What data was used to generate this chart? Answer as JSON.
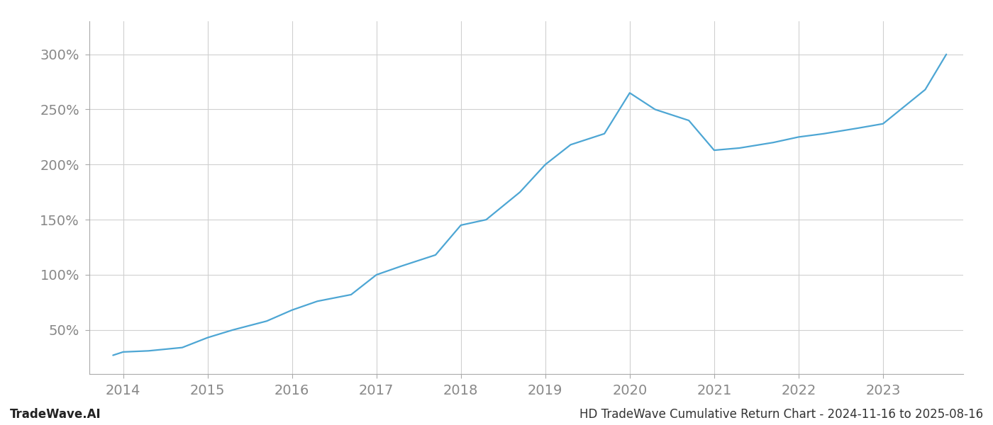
{
  "x_years": [
    2013.88,
    2014.0,
    2014.3,
    2014.7,
    2015.0,
    2015.3,
    2015.7,
    2016.0,
    2016.3,
    2016.7,
    2017.0,
    2017.3,
    2017.7,
    2018.0,
    2018.3,
    2018.7,
    2019.0,
    2019.3,
    2019.7,
    2020.0,
    2020.3,
    2020.7,
    2021.0,
    2021.3,
    2021.7,
    2022.0,
    2022.3,
    2022.7,
    2023.0,
    2023.5,
    2023.75
  ],
  "y_values": [
    27,
    30,
    31,
    34,
    43,
    50,
    58,
    68,
    76,
    82,
    100,
    108,
    118,
    145,
    150,
    175,
    200,
    218,
    228,
    265,
    250,
    240,
    213,
    215,
    220,
    225,
    228,
    233,
    237,
    268,
    300
  ],
  "x_ticks": [
    2014,
    2015,
    2016,
    2017,
    2018,
    2019,
    2020,
    2021,
    2022,
    2023
  ],
  "y_ticks": [
    50,
    100,
    150,
    200,
    250,
    300
  ],
  "y_tick_labels": [
    "50%",
    "100%",
    "150%",
    "200%",
    "250%",
    "300%"
  ],
  "line_color": "#4da6d4",
  "line_width": 1.6,
  "background_color": "#ffffff",
  "grid_color": "#d0d0d0",
  "spine_color": "#aaaaaa",
  "tick_color": "#888888",
  "footer_left": "TradeWave.AI",
  "footer_right": "HD TradeWave Cumulative Return Chart - 2024-11-16 to 2025-08-16",
  "footer_fontsize": 12,
  "tick_fontsize": 14,
  "xlim": [
    2013.6,
    2023.95
  ],
  "ylim": [
    10,
    330
  ]
}
